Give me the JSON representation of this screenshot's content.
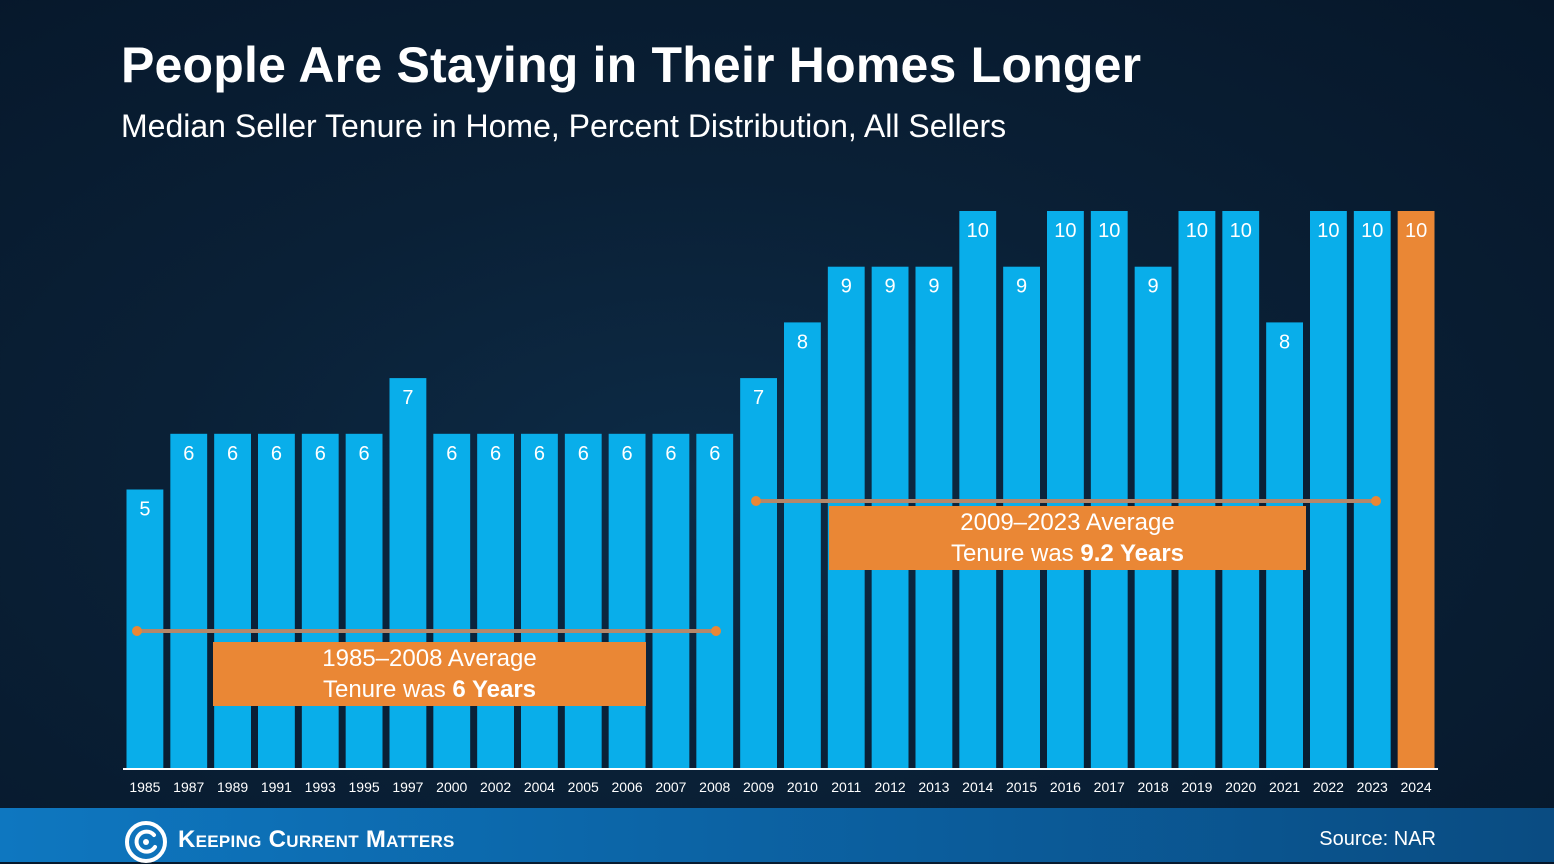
{
  "header": {
    "title": "People Are Staying in Their Homes Longer",
    "subtitle": "Median Seller Tenure in Home, Percent Distribution, All Sellers"
  },
  "chart_data": {
    "type": "bar",
    "title": "People Are Staying in Their Homes Longer",
    "subtitle": "Median Seller Tenure in Home, Percent Distribution, All Sellers",
    "categories": [
      "1985",
      "1987",
      "1989",
      "1991",
      "1993",
      "1995",
      "1997",
      "2000",
      "2002",
      "2004",
      "2005",
      "2006",
      "2007",
      "2008",
      "2009",
      "2010",
      "2011",
      "2012",
      "2013",
      "2014",
      "2015",
      "2016",
      "2017",
      "2018",
      "2019",
      "2020",
      "2021",
      "2022",
      "2023",
      "2024"
    ],
    "values": [
      5,
      6,
      6,
      6,
      6,
      6,
      7,
      6,
      6,
      6,
      6,
      6,
      6,
      6,
      7,
      8,
      9,
      9,
      9,
      10,
      9,
      10,
      10,
      9,
      10,
      10,
      8,
      10,
      10,
      10
    ],
    "ylim": [
      0,
      10
    ],
    "grid": false,
    "colors": {
      "bar": "#09aeea",
      "highlight": "#ea8735",
      "average_line": "#b4876a"
    },
    "highlight_category": "2024",
    "annotations": [
      {
        "from": "1985",
        "to": "2008",
        "value": 6,
        "line1": "1985–2008 Average",
        "line2_prefix": "Tenure was ",
        "line2_bold": "6 Years"
      },
      {
        "from": "2009",
        "to": "2023",
        "value": 9.2,
        "line1": "2009–2023 Average",
        "line2_prefix": "Tenure was ",
        "line2_bold": "9.2 Years"
      }
    ]
  },
  "footer": {
    "brand": "Keeping Current Matters",
    "logo_icon": "kcm-swirl-icon",
    "source": "Source: NAR",
    "background_color": "#0b66ab"
  }
}
